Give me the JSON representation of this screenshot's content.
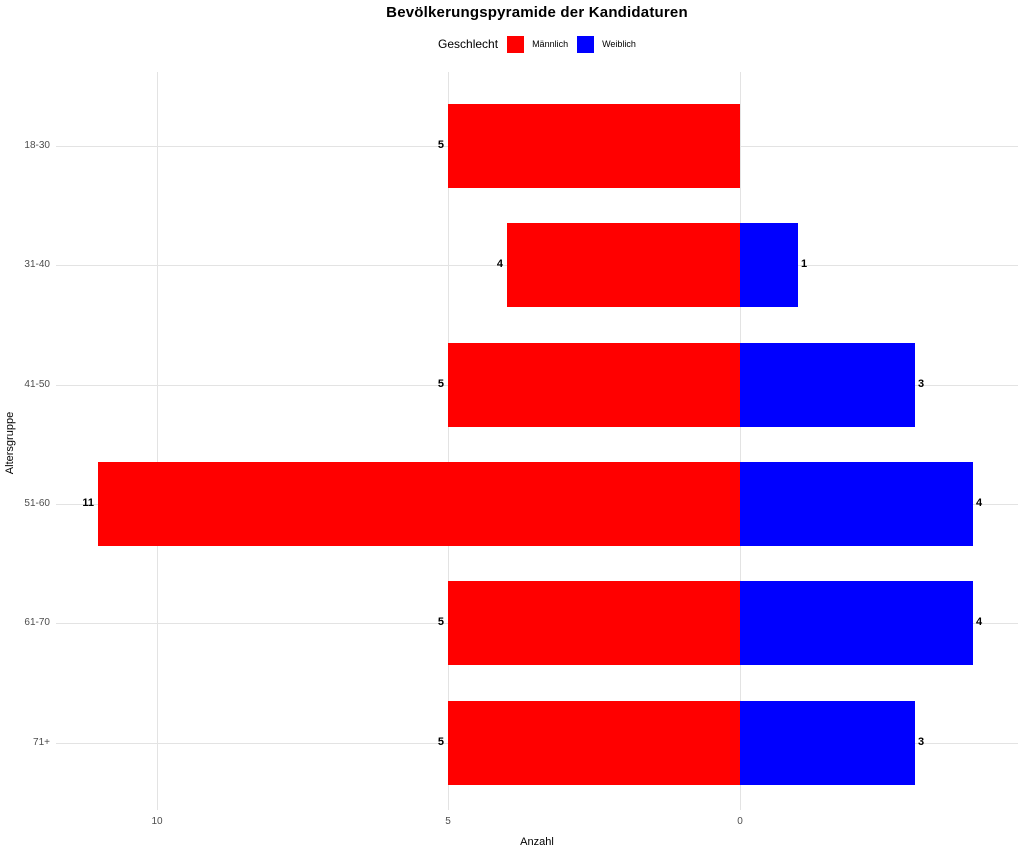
{
  "title": "Bevölkerungspyramide der Kandidaturen",
  "legend": {
    "title": "Geschlecht",
    "items": [
      {
        "label": "Männlich",
        "color": "#ff0000"
      },
      {
        "label": "Weiblich",
        "color": "#0000ff"
      }
    ]
  },
  "axes": {
    "x_title": "Anzahl",
    "y_title": "Altersgruppe",
    "x_tick_labels": [
      "10",
      "5",
      "0"
    ],
    "y_tick_labels": [
      "18-30",
      "31-40",
      "41-50",
      "51-60",
      "61-70",
      "71+"
    ]
  },
  "chart_data": {
    "type": "bar",
    "subtype": "population-pyramid",
    "orientation": "horizontal",
    "title": "Bevölkerungspyramide der Kandidaturen",
    "xlabel": "Anzahl",
    "ylabel": "Altersgruppe",
    "categories": [
      "18-30",
      "31-40",
      "41-50",
      "51-60",
      "61-70",
      "71+"
    ],
    "series": [
      {
        "name": "Männlich",
        "side": "left",
        "color": "#ff0000",
        "values": [
          5,
          4,
          5,
          11,
          5,
          5
        ]
      },
      {
        "name": "Weiblich",
        "side": "right",
        "color": "#0000ff",
        "values": [
          0,
          1,
          3,
          4,
          4,
          3
        ]
      }
    ],
    "x_ticks": [
      {
        "value": 10,
        "label": "10"
      },
      {
        "value": 5,
        "label": "5"
      },
      {
        "value": 0,
        "label": "0"
      }
    ],
    "value_labels": true,
    "grid": true,
    "legend_position": "top",
    "axis_range_left_units": 11.7,
    "axis_range_right_units": 4.8
  },
  "style": {
    "male_color": "#ff0000",
    "female_color": "#0000ff",
    "grid_color": "#e3e3e3",
    "axis_text_color": "#4d4d4d",
    "value_label_color": "#000000",
    "background": "#ffffff"
  }
}
